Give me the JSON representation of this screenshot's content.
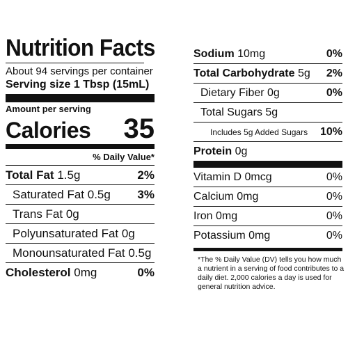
{
  "label": {
    "title": "Nutrition Facts",
    "servings_per_container": "About 94 servings per container",
    "serving_size_label": "Serving size",
    "serving_size_value": "1 Tbsp (15mL)",
    "amount_per_serving": "Amount per serving",
    "calories_label": "Calories",
    "calories_value": "35",
    "daily_value_header": "% Daily Value*"
  },
  "left_rows": [
    {
      "name": "Total Fat",
      "amount": "1.5g",
      "dv": "2%"
    },
    {
      "name": "Saturated Fat",
      "amount": "0.5g",
      "dv": "3%"
    },
    {
      "name": "Trans Fat",
      "amount": "0g",
      "dv": ""
    },
    {
      "name": "Polyunsaturated Fat",
      "amount": "0g",
      "dv": ""
    },
    {
      "name": "Monounsaturated Fat",
      "amount": "0.5g",
      "dv": ""
    },
    {
      "name": "Cholesterol",
      "amount": "0mg",
      "dv": "0%"
    }
  ],
  "right_rows": [
    {
      "name": "Sodium",
      "amount": "10mg",
      "dv": "0%"
    },
    {
      "name": "Total Carbohydrate",
      "amount": "5g",
      "dv": "2%"
    },
    {
      "name": "Dietary Fiber",
      "amount": "0g",
      "dv": "0%"
    },
    {
      "name": "Total Sugars",
      "amount": "5g",
      "dv": ""
    },
    {
      "name": "Includes 5g Added Sugars",
      "amount": "",
      "dv": "10%"
    },
    {
      "name": "Protein",
      "amount": "0g",
      "dv": ""
    }
  ],
  "vitamin_rows": [
    {
      "name": "Vitamin D",
      "amount": "0mcg",
      "dv": "0%"
    },
    {
      "name": "Calcium",
      "amount": "0mg",
      "dv": "0%"
    },
    {
      "name": "Iron",
      "amount": "0mg",
      "dv": "0%"
    },
    {
      "name": "Potassium",
      "amount": "0mg",
      "dv": "0%"
    }
  ],
  "footnote": "*The % Daily Value (DV) tells you how much a nutrient in a serving of food contributes to a daily diet. 2,000 calories a day is used for general nutrition advice."
}
